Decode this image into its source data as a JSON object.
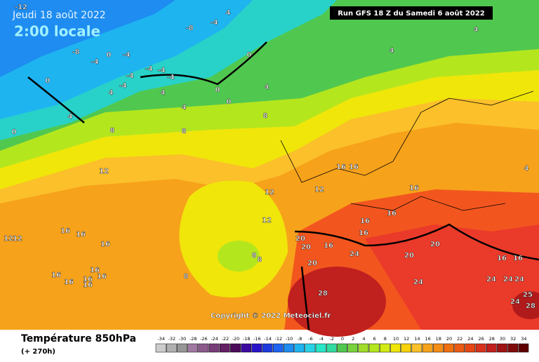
{
  "header": {
    "date": "Jeudi 18 août 2022",
    "time": "2:00 locale",
    "run": "Run GFS 18 Z du Samedi 6 août 2022",
    "copyright": "Copyright © 2022 Meteociel.fr"
  },
  "legend": {
    "title": "Température 850hPa",
    "subtitle": "(+ 270h)",
    "scale": [
      -34,
      -32,
      -30,
      -28,
      -26,
      -24,
      -22,
      -20,
      -18,
      -16,
      -14,
      -12,
      -10,
      -8,
      -6,
      -4,
      -2,
      0,
      2,
      4,
      6,
      8,
      10,
      12,
      14,
      16,
      18,
      20,
      22,
      24,
      26,
      28,
      30,
      32,
      34
    ]
  },
  "map": {
    "labels": [
      -12,
      -8,
      -4,
      4,
      -8,
      0,
      -4,
      -4,
      -4,
      -4,
      -4,
      -4,
      0,
      -4,
      4,
      4,
      0,
      0,
      0,
      4,
      4,
      4,
      0,
      8,
      8,
      8,
      4,
      4,
      4,
      12,
      12,
      12,
      16,
      16,
      16,
      16,
      16,
      12,
      16,
      16,
      12,
      12,
      16,
      16,
      16,
      16,
      16,
      16,
      16,
      8,
      8,
      8,
      20,
      20,
      16,
      20,
      24,
      16,
      20,
      20,
      24,
      28,
      16,
      16,
      24,
      24,
      24,
      24,
      25,
      28
    ]
  }
}
